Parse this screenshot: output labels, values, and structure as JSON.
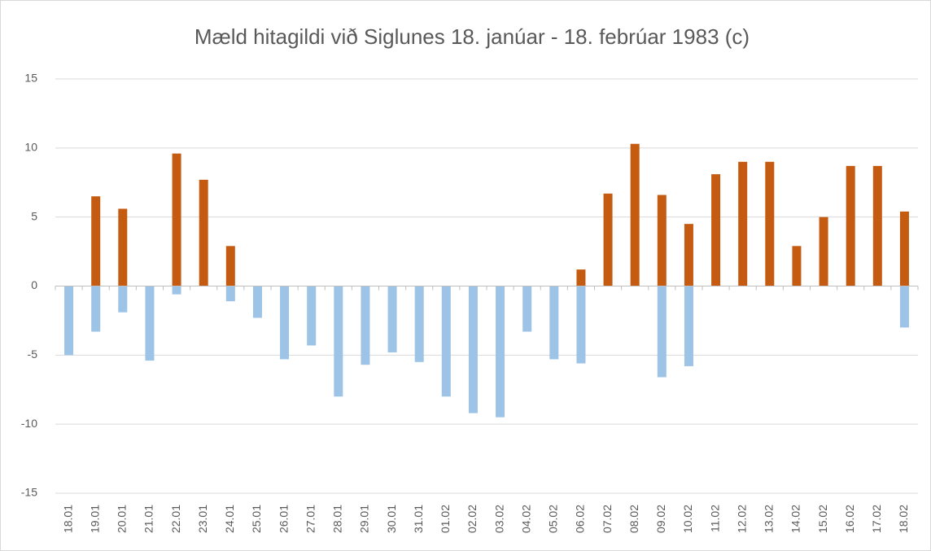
{
  "chart_data": {
    "type": "bar",
    "title": "Mæld hitagildi við Siglunes 18. janúar - 18. febrúar 1983 (c)",
    "categories": [
      "18.01",
      "19.01",
      "20.01",
      "21.01",
      "22.01",
      "23.01",
      "24.01",
      "25.01",
      "26.01",
      "27.01",
      "28.01",
      "29.01",
      "30.01",
      "31.01",
      "01.02",
      "02.02",
      "03.02",
      "04.02",
      "05.02",
      "06.02",
      "07.02",
      "08.02",
      "09.02",
      "10.02",
      "11.02",
      "12.02",
      "13.02",
      "14.02",
      "15.02",
      "16.02",
      "17.02",
      "18.02"
    ],
    "series": [
      {
        "color": "#c55a11",
        "values": [
          null,
          6.5,
          5.6,
          null,
          9.6,
          7.7,
          2.9,
          null,
          null,
          null,
          null,
          null,
          null,
          null,
          null,
          null,
          null,
          null,
          null,
          1.2,
          6.7,
          10.3,
          6.6,
          4.5,
          8.1,
          9.0,
          9.0,
          2.9,
          5.0,
          8.7,
          8.7,
          5.4
        ]
      },
      {
        "color": "#9dc3e6",
        "values": [
          -5.0,
          -3.3,
          -1.9,
          -5.4,
          -0.6,
          null,
          -1.1,
          -2.3,
          -5.3,
          -4.3,
          -8.0,
          -5.7,
          -4.8,
          -5.5,
          -8.0,
          -9.2,
          -9.5,
          -3.3,
          -5.3,
          -5.6,
          null,
          null,
          -6.6,
          -5.8,
          null,
          null,
          null,
          null,
          null,
          null,
          null,
          -3.0
        ]
      }
    ],
    "ylim": [
      -15,
      15
    ],
    "yticks": [
      -15,
      -10,
      -5,
      0,
      5,
      10,
      15
    ],
    "grid": true
  }
}
